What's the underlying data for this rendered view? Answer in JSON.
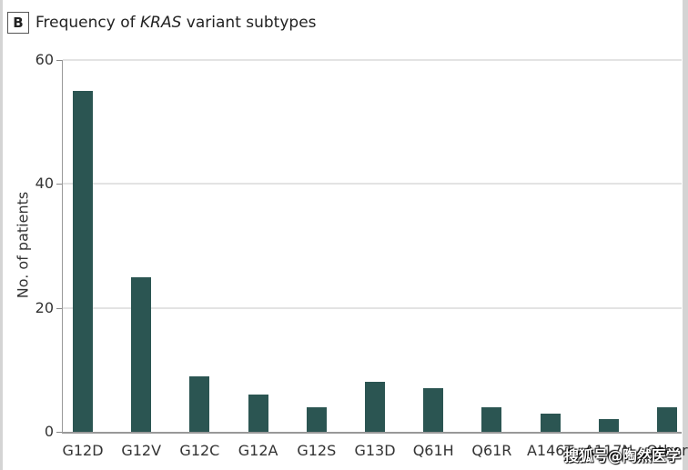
{
  "panel": {
    "letter": "B",
    "title_prefix": "Frequency of ",
    "title_italic": "KRAS",
    "title_suffix": " variant subtypes"
  },
  "watermark": "搜狐号@陶然医学",
  "colors": {
    "bar": "#2b5552",
    "grid": "#e3e3e3",
    "axis": "#999999"
  },
  "chart_data": {
    "type": "bar",
    "title": "Frequency of KRAS variant subtypes",
    "xlabel": "",
    "ylabel": "No. of patients",
    "ylim": [
      0,
      60
    ],
    "yticks": [
      "0",
      "20",
      "40",
      "60"
    ],
    "grid": true,
    "legend": "none",
    "categories": [
      "G12D",
      "G12V",
      "G12C",
      "G12A",
      "G12S",
      "G13D",
      "Q61H",
      "Q61R",
      "A146T",
      "A117N",
      "Other"
    ],
    "values": [
      55,
      25,
      9,
      6,
      4,
      8,
      7,
      4,
      3,
      2,
      4
    ]
  }
}
